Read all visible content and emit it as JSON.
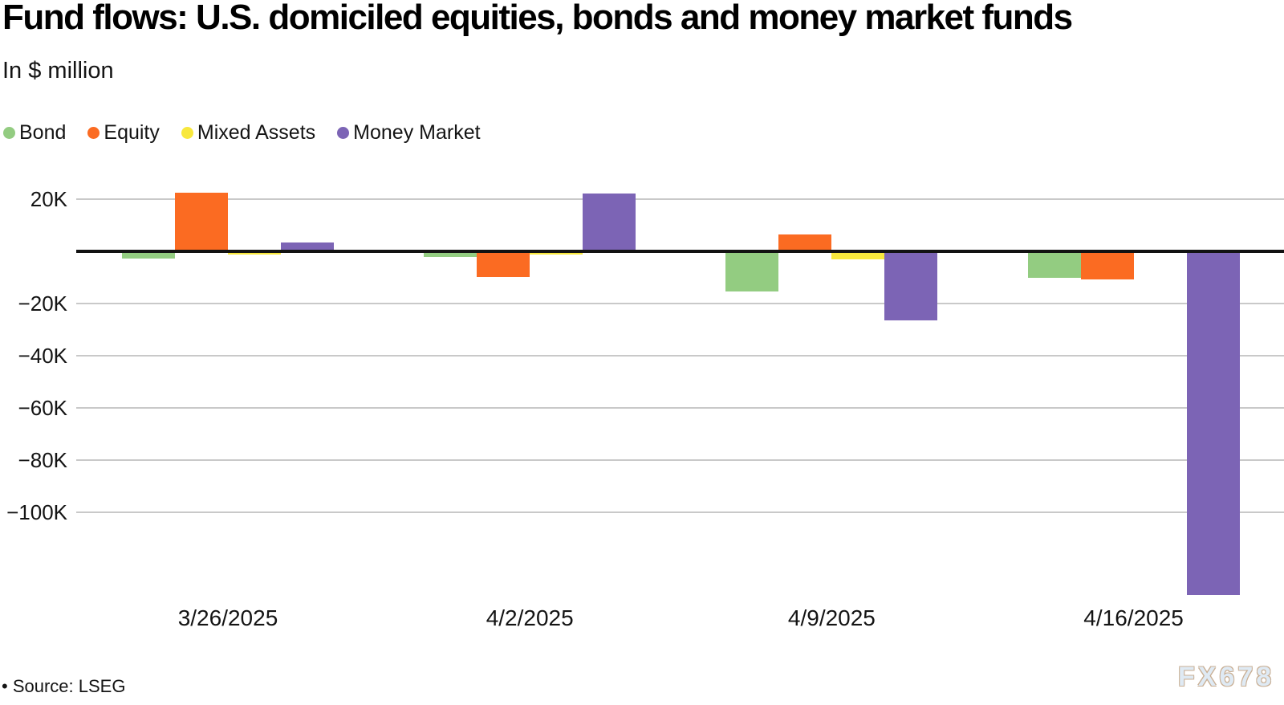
{
  "title": "Fund flows: U.S. domiciled equities, bonds and money market funds",
  "subtitle": "In $ million",
  "source_note": "• Source: LSEG",
  "watermark": "FX678",
  "legend": [
    {
      "label": "Bond",
      "color": "#93cc81"
    },
    {
      "label": "Equity",
      "color": "#fb6b22"
    },
    {
      "label": "Mixed Assets",
      "color": "#f8e83d"
    },
    {
      "label": "Money Market",
      "color": "#7c64b5"
    }
  ],
  "colors": {
    "bond": "#93cc81",
    "equity": "#fb6b22",
    "mixed_assets": "#f8e83d",
    "money_market": "#7c64b5",
    "gridline": "#c9c9c9",
    "zero_axis": "#121212",
    "watermark_fill": "#dfeaf4",
    "watermark_outline": "#c9af94"
  },
  "chart_data": {
    "type": "bar",
    "unit": "$ million",
    "title": "Fund flows: U.S. domiciled equities, bonds and money market funds",
    "subtitle": "In $ million",
    "categories": [
      "3/26/2025",
      "4/2/2025",
      "4/9/2025",
      "4/16/2025"
    ],
    "series": [
      {
        "name": "Bond",
        "color": "#93cc81",
        "values": [
          -2900,
          -2000,
          -15400,
          -10300
        ]
      },
      {
        "name": "Equity",
        "color": "#fb6b22",
        "values": [
          22500,
          -9900,
          6600,
          -10700
        ]
      },
      {
        "name": "Mixed Assets",
        "color": "#f8e83d",
        "values": [
          -1200,
          -1100,
          -3000,
          -200
        ]
      },
      {
        "name": "Money Market",
        "color": "#7c64b5",
        "values": [
          3500,
          22100,
          -26600,
          -131800
        ]
      }
    ],
    "yticks": [
      {
        "value": 20000,
        "label": "20K"
      },
      {
        "value": 0,
        "label": ""
      },
      {
        "value": -20000,
        "label": "−20K"
      },
      {
        "value": -40000,
        "label": "−40K"
      },
      {
        "value": -60000,
        "label": "−60K"
      },
      {
        "value": -80000,
        "label": "−80K"
      },
      {
        "value": -100000,
        "label": "−100K"
      }
    ],
    "ylim": [
      -140000,
      27000
    ],
    "grid": true,
    "legend_position": "top-left",
    "legend_entries": [
      "Bond",
      "Equity",
      "Mixed Assets",
      "Money Market"
    ]
  }
}
